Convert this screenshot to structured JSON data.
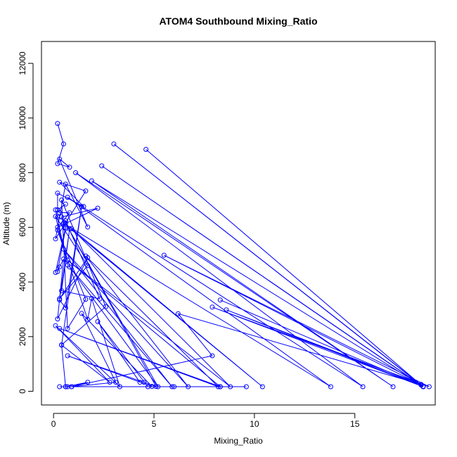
{
  "chart_data": {
    "type": "line",
    "title": "ATOM4 Southbound Mixing_Ratio",
    "xlabel": "Mixing_Ratio",
    "ylabel": "Altitude (m)",
    "xlim": [
      -0.6,
      19.0
    ],
    "ylim": [
      -500,
      12800
    ],
    "xticks": [
      0,
      5,
      10,
      15
    ],
    "yticks": [
      0,
      2000,
      4000,
      6000,
      8000,
      10000,
      12000
    ],
    "grid": false,
    "legend": "none",
    "marker": "open-circle",
    "color": "#0000ff",
    "series": [
      {
        "x": [
          0.2,
          0.5,
          0.2,
          0.8,
          0.3,
          1.7,
          0.6,
          0.1,
          1.6,
          0.3,
          1.5,
          0.2,
          0.2,
          0.6,
          0.2,
          0.3,
          0.8,
          0.2,
          2.2,
          0.4,
          0.6,
          0.1,
          0.6,
          0.2,
          0.3,
          0.5,
          0.2,
          1.7,
          0.3,
          1.7,
          0.1,
          0.7,
          0.1,
          0.2,
          0.6,
          2.3,
          0.4,
          0.8,
          0.3,
          0.6,
          1.4,
          0.4,
          2.6,
          0.4,
          0.7,
          1.6,
          0.2,
          1.7,
          1.9,
          3.3,
          0.1,
          2.8,
          0.4,
          0.6,
          1.7,
          0.9,
          3.1,
          1.4,
          4.9,
          0.7,
          4.5,
          5.1,
          0.6,
          5.2,
          0.8,
          5.9,
          0.5,
          6.7,
          1.6,
          8.2,
          0.3,
          8.3,
          0.7,
          8.8,
          0.9,
          10.4,
          0.5,
          13.8,
          0.7,
          15.4,
          1.1,
          16.9,
          1.9,
          18.4,
          2.4,
          18.4,
          3.0,
          18.4,
          4.6,
          18.3,
          5.5,
          18.7,
          7.9,
          18.4,
          8.3,
          18.4,
          8.6,
          18.3,
          6.2,
          7.9,
          0.9,
          9.6,
          0.6,
          8.3,
          0.3,
          6.0,
          0.7,
          4.7,
          2.2,
          4.3
        ],
        "y": [
          9800,
          9050,
          8330,
          8200,
          8500,
          6010,
          7580,
          5580,
          7330,
          7650,
          6760,
          7250,
          6640,
          6850,
          6640,
          6540,
          6530,
          6000,
          6700,
          6380,
          6000,
          4350,
          5950,
          4380,
          4550,
          4840,
          2650,
          4890,
          3390,
          4600,
          6400,
          4620,
          6640,
          6380,
          6240,
          3380,
          3680,
          5950,
          3340,
          3050,
          6760,
          1700,
          3100,
          7000,
          2300,
          3370,
          5900,
          2630,
          3400,
          170,
          2400,
          330,
          1690,
          170,
          330,
          170,
          330,
          2850,
          180,
          1300,
          330,
          180,
          6150,
          170,
          4550,
          170,
          5200,
          170,
          4950,
          170,
          2300,
          170,
          4800,
          170,
          5950,
          170,
          6150,
          170,
          7100,
          170,
          8000,
          170,
          7700,
          170,
          8250,
          180,
          9050,
          170,
          8850,
          230,
          4980,
          170,
          3080,
          170,
          3340,
          170,
          2980,
          250,
          2840,
          1300,
          170,
          170,
          170,
          170,
          170,
          170,
          170,
          170,
          2550,
          330
        ]
      }
    ]
  }
}
